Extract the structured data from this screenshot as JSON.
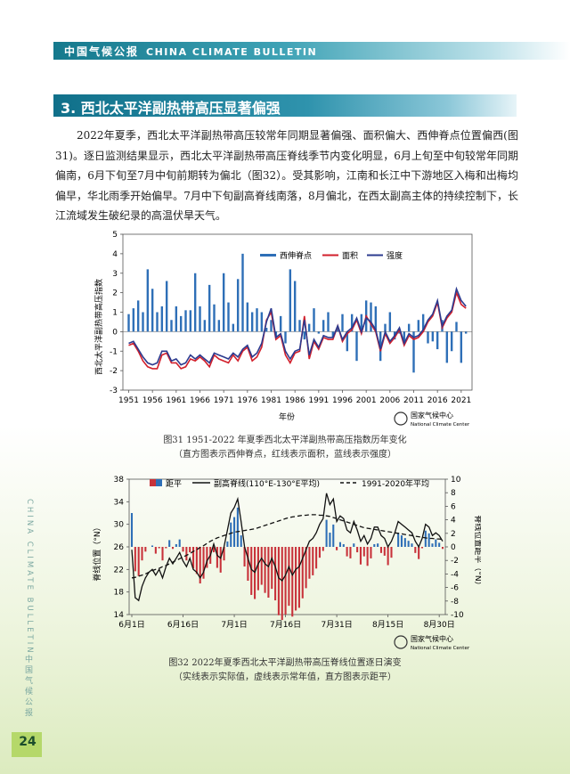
{
  "header": {
    "cn": "中国气候公报",
    "en": "CHINA CLIMATE BULLETIN"
  },
  "section_title": "3. 西北太平洋副热带高压显著偏强",
  "paragraph": "2022年夏季，西北太平洋副热带高压较常年同期显著偏强、面积偏大、西伸脊点位置偏西(图31)。逐日监测结果显示，西北太平洋副热带高压脊线季节内变化明显，6月上旬至中旬较常年同期偏南，6月下旬至7月中旬前期转为偏北（图32）。受其影响，江南和长江中下游地区入梅和出梅均偏早，华北雨季开始偏早。7月中下旬副高脊线南落，8月偏北，在西太副高主体的持续控制下，长江流域发生破纪录的高温伏旱天气。",
  "side_text_en": "CHINA CLIMATE BULLETIN",
  "side_text_cn": "中国气候公报",
  "page_number": "24",
  "logo": {
    "cn": "国家气候中心",
    "en": "National Climate Center"
  },
  "caption1": [
    "图31 1951-2022 年夏季西北太平洋副热带高压指数历年变化",
    "（直方图表示西伸脊点，红线表示面积，蓝线表示强度）"
  ],
  "caption2": [
    "图32 2022年夏季西北太平洋副热带高压脊线位置逐日演变",
    "（实线表示实际值，虚线表示常年值，直方图表示距平）"
  ],
  "colors": {
    "bar": "#2e6fb7",
    "area": "#d21f2b",
    "intensity": "#2c3b8f",
    "neg": "#c8323a",
    "accent": "#15798d"
  },
  "chart_data": [
    {
      "type": "bar",
      "ylabel": "西北太平洋副热带高压指数",
      "xlabel": "年份",
      "ylim": [
        -3,
        5
      ],
      "yticks": [
        -3,
        -2,
        -1,
        0,
        1,
        2,
        3,
        4,
        5
      ],
      "xticks": [
        1951,
        1956,
        1961,
        1966,
        1971,
        1976,
        1981,
        1986,
        1991,
        1996,
        2001,
        2006,
        2011,
        2016,
        2021
      ],
      "legend_position": "top-right",
      "x": [
        1951,
        1952,
        1953,
        1954,
        1955,
        1956,
        1957,
        1958,
        1959,
        1960,
        1961,
        1962,
        1963,
        1964,
        1965,
        1966,
        1967,
        1968,
        1969,
        1970,
        1971,
        1972,
        1973,
        1974,
        1975,
        1976,
        1977,
        1978,
        1979,
        1980,
        1981,
        1982,
        1983,
        1984,
        1985,
        1986,
        1987,
        1988,
        1989,
        1990,
        1991,
        1992,
        1993,
        1994,
        1995,
        1996,
        1997,
        1998,
        1999,
        2000,
        2001,
        2002,
        2003,
        2004,
        2005,
        2006,
        2007,
        2008,
        2009,
        2010,
        2011,
        2012,
        2013,
        2014,
        2015,
        2016,
        2017,
        2018,
        2019,
        2020,
        2021,
        2022
      ],
      "series": [
        {
          "name": "西伸脊点",
          "kind": "bar",
          "values": [
            0.9,
            1.2,
            1.6,
            1.0,
            3.2,
            2.2,
            1.0,
            1.3,
            2.6,
            0.6,
            1.3,
            0.8,
            1.1,
            1.1,
            3.0,
            1.3,
            0.6,
            2.4,
            1.4,
            0.6,
            3.0,
            1.5,
            0.4,
            2.7,
            4.0,
            1.5,
            1.0,
            1.2,
            1.0,
            0.2,
            0.6,
            -0.3,
            0.8,
            -0.6,
            3.2,
            2.6,
            0.6,
            -0.4,
            0.4,
            1.2,
            -0.1,
            0.6,
            1.0,
            -0.3,
            0.2,
            0.9,
            -1.0,
            0.9,
            -1.5,
            0.9,
            1.6,
            1.5,
            1.3,
            -1.5,
            0.4,
            1.0,
            -0.4,
            -0.1,
            -0.5,
            0.4,
            -2.1,
            0.6,
            0.9,
            -0.6,
            -0.5,
            -0.9,
            0.6,
            -1.6,
            -1.0,
            0.5,
            -1.6,
            -0.1
          ]
        },
        {
          "name": "面积",
          "kind": "line",
          "values": [
            -0.7,
            -0.6,
            -1.0,
            -1.5,
            -1.8,
            -1.9,
            -1.9,
            -1.2,
            -1.1,
            -1.6,
            -1.6,
            -1.9,
            -1.8,
            -1.4,
            -1.5,
            -1.3,
            -1.5,
            -1.8,
            -1.2,
            -1.4,
            -1.5,
            -1.6,
            -1.2,
            -1.5,
            -1.0,
            -0.8,
            -1.5,
            -1.3,
            -0.8,
            0.6,
            1.0,
            -0.4,
            -0.2,
            -1.2,
            -1.6,
            -1.1,
            -1.0,
            0.8,
            -1.4,
            -0.5,
            -0.9,
            -0.3,
            -0.4,
            -0.4,
            0.3,
            -0.5,
            -0.1,
            0.1,
            0.6,
            -0.1,
            0.8,
            0.4,
            0.0,
            -1.0,
            -0.1,
            -0.6,
            -0.3,
            0.1,
            -0.7,
            -0.2,
            -0.4,
            -0.3,
            0.0,
            0.5,
            0.8,
            1.5,
            0.2,
            0.7,
            1.0,
            2.0,
            1.4,
            1.2
          ]
        },
        {
          "name": "强度",
          "kind": "line",
          "values": [
            -0.6,
            -0.5,
            -0.9,
            -1.3,
            -1.6,
            -1.7,
            -1.6,
            -1.0,
            -1.0,
            -1.5,
            -1.4,
            -1.7,
            -1.6,
            -1.2,
            -1.4,
            -1.2,
            -1.4,
            -1.6,
            -1.1,
            -1.2,
            -1.3,
            -1.4,
            -1.1,
            -1.3,
            -0.9,
            -0.7,
            -1.3,
            -1.1,
            -0.6,
            0.5,
            1.2,
            -0.3,
            -0.1,
            -1.0,
            -1.4,
            -1.0,
            -0.9,
            0.6,
            -1.2,
            -0.4,
            -0.8,
            -0.2,
            -0.3,
            -0.3,
            0.3,
            -0.4,
            0.0,
            0.2,
            0.7,
            0.0,
            0.7,
            0.5,
            0.1,
            -0.9,
            0.0,
            -0.5,
            -0.2,
            0.2,
            -0.6,
            -0.1,
            -0.3,
            -0.2,
            0.1,
            0.6,
            0.9,
            1.6,
            0.3,
            0.8,
            1.1,
            2.2,
            1.6,
            1.3
          ]
        }
      ]
    },
    {
      "type": "line",
      "ylabel": "脊线位置（°N）",
      "y2label": "脊线位置距平（°N）",
      "ylim": [
        14,
        38
      ],
      "y2lim": [
        -10,
        10
      ],
      "yticks": [
        14,
        18,
        22,
        26,
        30,
        34,
        38
      ],
      "y2ticks": [
        -10,
        -8,
        -6,
        -4,
        -2,
        0,
        2,
        4,
        6,
        8,
        10
      ],
      "xticks": [
        "6月1日",
        "6月16日",
        "7月1日",
        "7月16日",
        "7月31日",
        "8月15日",
        "8月30日"
      ],
      "legend_position": "top",
      "legend": [
        "距平",
        "副高脊线(110°E-130°E平均)",
        "1991-2020年平均"
      ],
      "actual": [
        25.5,
        17.0,
        16.5,
        19.0,
        20.5,
        21.5,
        22.0,
        21.0,
        22.0,
        20.5,
        22.5,
        24.0,
        23.0,
        24.0,
        25.0,
        23.5,
        22.5,
        24.0,
        22.0,
        21.5,
        20.5,
        21.5,
        23.5,
        24.5,
        26.5,
        24.5,
        24.0,
        26.0,
        29.0,
        32.0,
        33.0,
        34.5,
        30.5,
        26.0,
        24.0,
        22.0,
        21.5,
        23.0,
        24.0,
        23.0,
        22.5,
        24.0,
        22.5,
        20.5,
        20.0,
        21.0,
        22.5,
        21.0,
        22.0,
        22.5,
        24.0,
        25.5,
        27.0,
        27.5,
        28.5,
        30.0,
        31.0,
        35.5,
        33.5,
        34.5,
        30.5,
        31.5,
        31.0,
        29.0,
        28.5,
        30.5,
        29.0,
        27.0,
        28.0,
        26.5,
        27.5,
        29.5,
        29.5,
        28.0,
        27.5,
        26.0,
        27.0,
        28.5,
        30.5,
        30.0,
        29.5,
        29.0,
        28.5,
        27.0,
        26.0,
        27.5,
        30.0,
        29.5,
        28.0,
        28.5,
        28.0,
        27.0
      ],
      "normal": [
        20.5,
        20.6,
        20.8,
        21.0,
        21.2,
        21.5,
        21.8,
        22.0,
        22.2,
        22.5,
        22.7,
        23.0,
        23.3,
        23.6,
        23.9,
        24.2,
        24.5,
        24.8,
        25.2,
        25.5,
        25.9,
        26.2,
        26.6,
        27.0,
        27.3,
        27.6,
        27.8,
        28.0,
        28.2,
        28.4,
        28.6,
        28.7,
        28.8,
        28.9,
        29.0,
        29.1,
        29.2,
        29.4,
        29.6,
        29.8,
        30.0,
        30.2,
        30.4,
        30.6,
        30.8,
        31.0,
        31.2,
        31.3,
        31.4,
        31.5,
        31.6,
        31.6,
        31.7,
        31.7,
        31.7,
        31.6,
        31.6,
        31.5,
        31.4,
        31.2,
        31.0,
        30.8,
        30.6,
        30.4,
        30.2,
        30.0,
        29.8,
        29.6,
        29.4,
        29.3,
        29.2,
        29.1,
        29.0,
        28.9,
        28.8,
        28.7,
        28.6,
        28.5,
        28.4,
        28.3,
        28.2,
        28.1,
        28.0,
        27.9,
        27.8,
        27.7,
        27.6,
        27.5,
        27.5,
        27.4,
        27.4,
        27.3
      ]
    }
  ]
}
